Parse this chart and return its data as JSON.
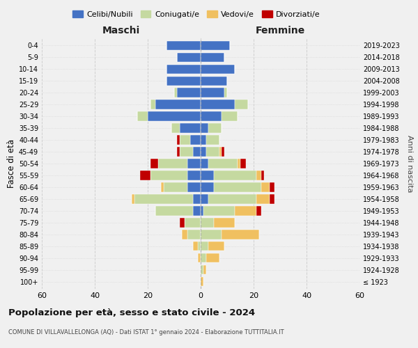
{
  "age_groups": [
    "100+",
    "95-99",
    "90-94",
    "85-89",
    "80-84",
    "75-79",
    "70-74",
    "65-69",
    "60-64",
    "55-59",
    "50-54",
    "45-49",
    "40-44",
    "35-39",
    "30-34",
    "25-29",
    "20-24",
    "15-19",
    "10-14",
    "5-9",
    "0-4"
  ],
  "birth_years": [
    "≤ 1923",
    "1924-1928",
    "1929-1933",
    "1934-1938",
    "1939-1943",
    "1944-1948",
    "1949-1953",
    "1954-1958",
    "1959-1963",
    "1964-1968",
    "1969-1973",
    "1974-1978",
    "1979-1983",
    "1984-1988",
    "1989-1993",
    "1994-1998",
    "1999-2003",
    "2004-2008",
    "2009-2013",
    "2014-2018",
    "2019-2023"
  ],
  "colors": {
    "celibe": "#4472c4",
    "coniugato": "#c5d9a0",
    "vedovo": "#f0c060",
    "divorziato": "#c00000"
  },
  "male": {
    "celibe": [
      0,
      0,
      0,
      0,
      0,
      0,
      3,
      3,
      5,
      5,
      5,
      3,
      4,
      8,
      20,
      17,
      9,
      13,
      13,
      9,
      13
    ],
    "coniugato": [
      0,
      0,
      0,
      1,
      5,
      6,
      14,
      22,
      9,
      14,
      11,
      5,
      4,
      3,
      4,
      2,
      1,
      0,
      0,
      0,
      0
    ],
    "vedovo": [
      0,
      0,
      1,
      2,
      2,
      0,
      0,
      1,
      1,
      0,
      0,
      0,
      0,
      0,
      0,
      0,
      0,
      0,
      0,
      0,
      0
    ],
    "divorziato": [
      0,
      0,
      0,
      0,
      0,
      2,
      0,
      0,
      0,
      4,
      3,
      1,
      1,
      0,
      0,
      0,
      0,
      0,
      0,
      0,
      0
    ]
  },
  "female": {
    "nubile": [
      0,
      0,
      0,
      0,
      0,
      0,
      1,
      3,
      5,
      5,
      3,
      2,
      2,
      3,
      8,
      13,
      9,
      10,
      13,
      9,
      11
    ],
    "coniugata": [
      0,
      1,
      2,
      3,
      8,
      5,
      12,
      18,
      18,
      16,
      11,
      5,
      5,
      5,
      6,
      5,
      1,
      0,
      0,
      0,
      0
    ],
    "vedova": [
      1,
      1,
      5,
      6,
      14,
      8,
      8,
      5,
      3,
      2,
      1,
      1,
      0,
      0,
      0,
      0,
      0,
      0,
      0,
      0,
      0
    ],
    "divorziata": [
      0,
      0,
      0,
      0,
      0,
      0,
      2,
      2,
      2,
      1,
      2,
      1,
      0,
      0,
      0,
      0,
      0,
      0,
      0,
      0,
      0
    ]
  },
  "xlim": 60,
  "title_main": "Popolazione per età, sesso e stato civile - 2024",
  "title_sub": "COMUNE DI VILLAVALLELONGA (AQ) - Dati ISTAT 1° gennaio 2024 - Elaborazione TUTTITALIA.IT",
  "ylabel_left": "Fasce di età",
  "ylabel_right": "Anni di nascita",
  "xlabel_left": "Maschi",
  "xlabel_right": "Femmine",
  "legend_labels": [
    "Celibi/Nubili",
    "Coniugati/e",
    "Vedovi/e",
    "Divorziati/e"
  ],
  "background_color": "#f0f0f0",
  "grid_color": "#cccccc"
}
